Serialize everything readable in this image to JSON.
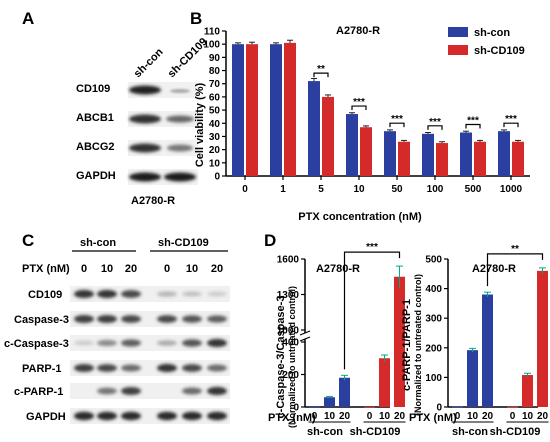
{
  "figure": {
    "panels": [
      "A",
      "B",
      "C",
      "D"
    ]
  },
  "panel_a": {
    "columns": [
      "sh-con",
      "sh-CD109"
    ],
    "rows": [
      "CD109",
      "ABCB1",
      "ABCG2",
      "GAPDH"
    ],
    "cell_line": "A2780-R"
  },
  "panel_c": {
    "groups": [
      "sh-con",
      "sh-CD109"
    ],
    "ptx_label": "PTX (nM)",
    "ptx_doses": [
      "0",
      "10",
      "20",
      "0",
      "10",
      "20"
    ],
    "rows": [
      "CD109",
      "Caspase-3",
      "c-Caspase-3",
      "PARP-1",
      "c-PARP-1",
      "GAPDH"
    ]
  },
  "chart_data": [
    {
      "type": "bar",
      "title": "A2780-R",
      "xlabel": "PTX concentration (nM)",
      "ylabel": "Cell viability (%)",
      "ylim": [
        0,
        110
      ],
      "yticks": [
        "0",
        "10",
        "20",
        "30",
        "40",
        "50",
        "60",
        "70",
        "80",
        "90",
        "100",
        "110"
      ],
      "categories": [
        "0",
        "1",
        "5",
        "10",
        "50",
        "100",
        "500",
        "1000"
      ],
      "series": [
        {
          "name": "sh-con",
          "color": "#2a3f9f",
          "values": [
            100,
            100,
            72,
            47,
            34,
            32,
            33,
            34
          ],
          "errors": [
            1,
            1,
            2,
            1,
            1,
            1,
            1,
            1
          ]
        },
        {
          "name": "sh-CD109",
          "color": "#d42a2a",
          "values": [
            100,
            101,
            60,
            37,
            26,
            25,
            26,
            26
          ],
          "errors": [
            1.5,
            2,
            1.5,
            1,
            1,
            1,
            1,
            1
          ]
        }
      ],
      "significance": [
        "",
        "",
        "**",
        "***",
        "***",
        "***",
        "***",
        "***"
      ],
      "legend": "top-right",
      "grid": false
    },
    {
      "type": "bar",
      "title": "A2780-R",
      "ylabel": "c-Caspase-3/Caspase-3",
      "ylabel2": "(Normalized to untreated control)",
      "ylim": [
        0,
        1600
      ],
      "axis_break": [
        400,
        1000
      ],
      "yticks": [
        "0",
        "200",
        "400",
        "1000",
        "1300",
        "1600"
      ],
      "x_label": "PTX (nM)",
      "categories": [
        "0",
        "10",
        "20",
        "0",
        "10",
        "20"
      ],
      "groups": [
        "sh-con",
        "sh-CD109"
      ],
      "values": [
        1,
        60,
        180,
        1,
        300,
        1450
      ],
      "errors": [
        0,
        5,
        15,
        0,
        20,
        90
      ],
      "colors": [
        "#2a3f9f",
        "#2a3f9f",
        "#2a3f9f",
        "#d42a2a",
        "#d42a2a",
        "#d42a2a"
      ],
      "significance": "***",
      "grid": false
    },
    {
      "type": "bar",
      "title": "A2780-R",
      "ylabel": "c-PARP-1/PARP-1",
      "ylabel2": "(Normalized to untreated control)",
      "ylim": [
        0,
        500
      ],
      "yticks": [
        "0",
        "100",
        "200",
        "300",
        "400",
        "500"
      ],
      "x_label": "PTX (nM)",
      "categories": [
        "0",
        "10",
        "20",
        "0",
        "10",
        "20"
      ],
      "groups": [
        "sh-con",
        "sh-CD109"
      ],
      "values": [
        1,
        192,
        380,
        1,
        108,
        460
      ],
      "errors": [
        0,
        6,
        8,
        0,
        6,
        10
      ],
      "colors": [
        "#2a3f9f",
        "#2a3f9f",
        "#2a3f9f",
        "#d42a2a",
        "#d42a2a",
        "#d42a2a"
      ],
      "significance": "**",
      "grid": false
    }
  ]
}
